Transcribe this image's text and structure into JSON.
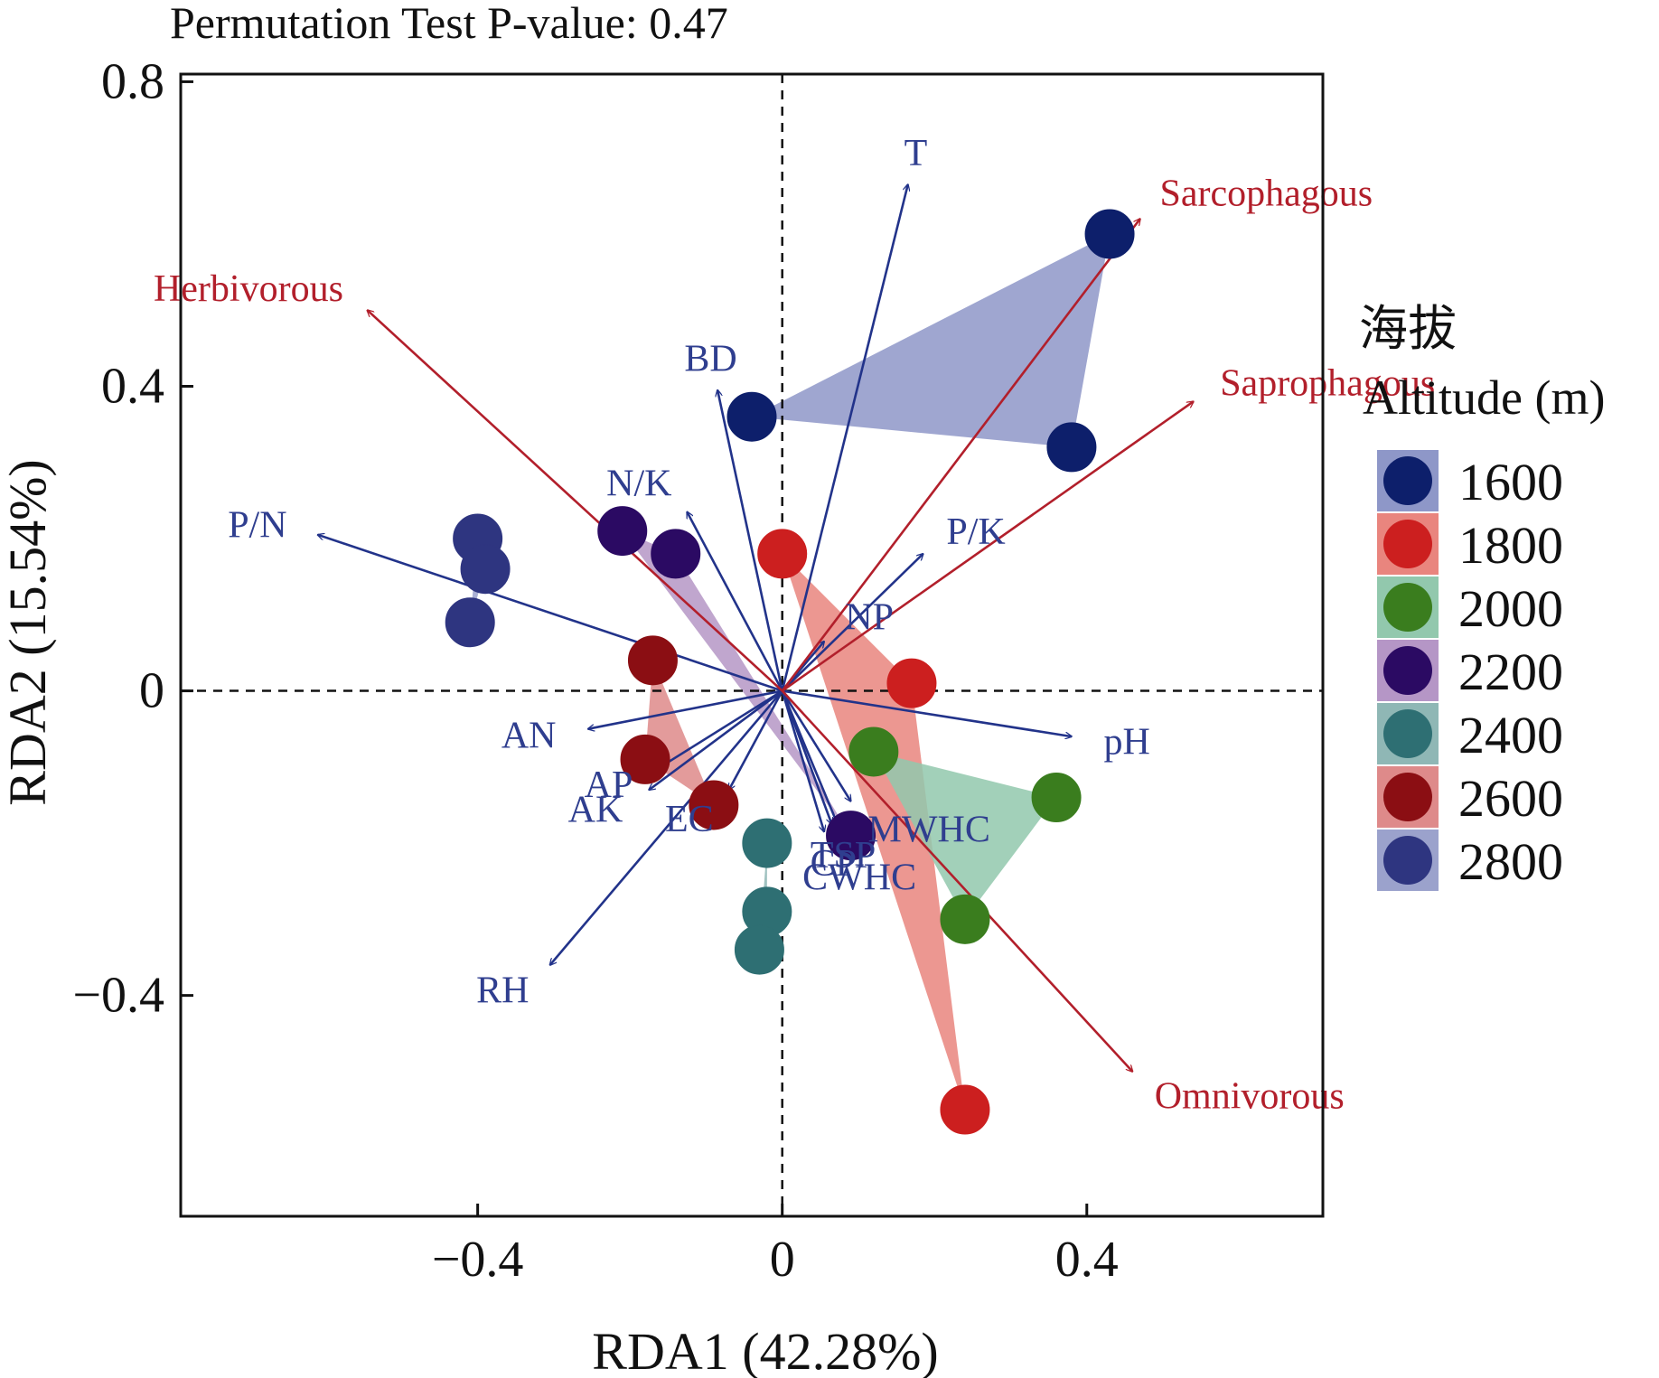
{
  "chart_data": {
    "type": "scatter",
    "subtype": "rda-biplot",
    "title": "Permutation Test P-value: 0.47",
    "xlabel": "RDA1 (42.28%)",
    "ylabel": "RDA2 (15.54%)",
    "xlim": [
      -0.79,
      0.71
    ],
    "ylim": [
      -0.69,
      0.81
    ],
    "x_ticks": [
      {
        "value": -0.4,
        "label": "−0.4"
      },
      {
        "value": 0,
        "label": "0"
      },
      {
        "value": 0.4,
        "label": "0.4"
      }
    ],
    "y_ticks": [
      {
        "value": 0.8,
        "label": "0.8"
      },
      {
        "value": 0.4,
        "label": "0.4"
      },
      {
        "value": 0,
        "label": "0"
      },
      {
        "value": -0.4,
        "label": "−0.4"
      }
    ],
    "reference_lines": {
      "x": 0,
      "y": 0,
      "style": "dashed"
    },
    "legend": {
      "title_line1": "海拔",
      "title_line2": "Altitude (m)",
      "placement": "right"
    },
    "series": [
      {
        "name": "1600",
        "color": "#0d1f6b",
        "hull_color": "#8e97c8",
        "points": [
          [
            -0.04,
            0.36
          ],
          [
            0.43,
            0.6
          ],
          [
            0.38,
            0.32
          ]
        ]
      },
      {
        "name": "1800",
        "color": "#cc1f1f",
        "hull_color": "#e9857e",
        "points": [
          [
            0.0,
            0.18
          ],
          [
            0.17,
            0.01
          ],
          [
            0.24,
            -0.55
          ]
        ]
      },
      {
        "name": "2000",
        "color": "#3a7d1e",
        "hull_color": "#92c8ad",
        "points": [
          [
            0.12,
            -0.08
          ],
          [
            0.36,
            -0.14
          ],
          [
            0.24,
            -0.3
          ]
        ]
      },
      {
        "name": "2200",
        "color": "#2b0a63",
        "hull_color": "#b596c6",
        "points": [
          [
            -0.21,
            0.21
          ],
          [
            -0.14,
            0.18
          ],
          [
            0.09,
            -0.19
          ]
        ]
      },
      {
        "name": "2400",
        "color": "#2e6f73",
        "hull_color": "#8fb7b5",
        "points": [
          [
            -0.02,
            -0.2
          ],
          [
            -0.02,
            -0.29
          ],
          [
            -0.03,
            -0.34
          ]
        ]
      },
      {
        "name": "2600",
        "color": "#8b0e13",
        "hull_color": "#de8a8a",
        "points": [
          [
            -0.17,
            0.04
          ],
          [
            -0.18,
            -0.09
          ],
          [
            -0.09,
            -0.15
          ]
        ]
      },
      {
        "name": "2800",
        "color": "#2e3580",
        "hull_color": "#9ba2cc",
        "points": [
          [
            -0.4,
            0.2
          ],
          [
            -0.39,
            0.16
          ],
          [
            -0.41,
            0.09
          ]
        ]
      }
    ],
    "env_vectors": [
      {
        "label": "T",
        "x": 0.165,
        "y": 0.665
      },
      {
        "label": "BD",
        "x": -0.085,
        "y": 0.395
      },
      {
        "label": "N/K",
        "x": -0.125,
        "y": 0.235
      },
      {
        "label": "P/N",
        "x": -0.61,
        "y": 0.205
      },
      {
        "label": "P/K",
        "x": 0.185,
        "y": 0.18
      },
      {
        "label": "NP",
        "x": 0.055,
        "y": 0.065
      },
      {
        "label": "AN",
        "x": -0.255,
        "y": -0.05
      },
      {
        "label": "AP",
        "x": -0.16,
        "y": -0.1
      },
      {
        "label": "AK",
        "x": -0.175,
        "y": -0.13
      },
      {
        "label": "EC",
        "x": -0.07,
        "y": -0.13
      },
      {
        "label": "RH",
        "x": -0.305,
        "y": -0.36
      },
      {
        "label": "TSP",
        "x": 0.065,
        "y": -0.175
      },
      {
        "label": "MWHC",
        "x": 0.09,
        "y": -0.145
      },
      {
        "label": "CWHC",
        "x": 0.085,
        "y": -0.205
      },
      {
        "label": "CP",
        "x": 0.055,
        "y": -0.185
      },
      {
        "label": "pH",
        "x": 0.38,
        "y": -0.06
      }
    ],
    "group_vectors": [
      {
        "label": "Sarcophagous",
        "x": 0.47,
        "y": 0.62
      },
      {
        "label": "Herbivorous",
        "x": -0.545,
        "y": 0.5
      },
      {
        "label": "Saprophagous",
        "x": 0.54,
        "y": 0.38
      },
      {
        "label": "Omnivorous",
        "x": 0.46,
        "y": -0.5
      }
    ],
    "colors": {
      "env_arrow": "#22338a",
      "group_arrow": "#b21f2b",
      "axis": "#111111"
    }
  }
}
